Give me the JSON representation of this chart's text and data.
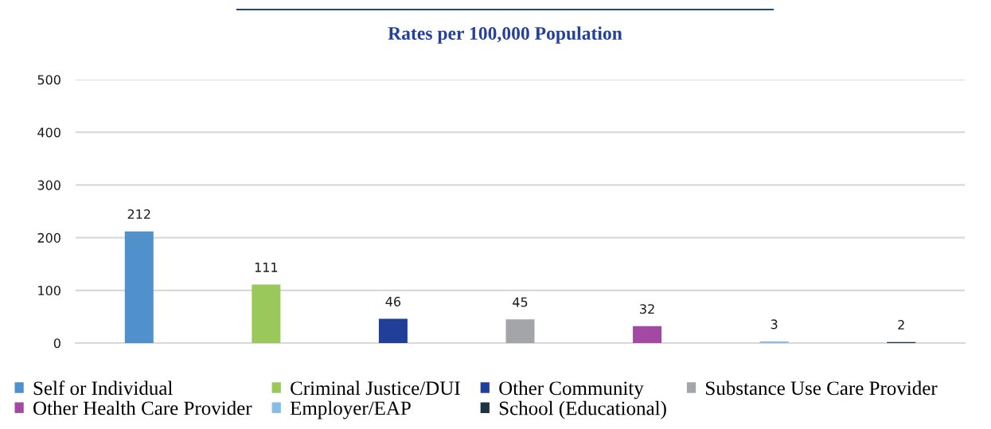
{
  "chart_data": {
    "type": "bar",
    "title": "Rates per 100,000 Population",
    "categories": [
      null
    ],
    "series": [
      {
        "name": "Self or Individual",
        "color": "#4f90cd",
        "values": [
          212
        ]
      },
      {
        "name": "Criminal Justice/DUI",
        "color": "#9bc85a",
        "values": [
          111
        ]
      },
      {
        "name": "Other Community",
        "color": "#213f98",
        "values": [
          46
        ]
      },
      {
        "name": "Substance Use Care Provider",
        "color": "#a3a5a8",
        "values": [
          45
        ]
      },
      {
        "name": "Other Health Care Provider",
        "color": "#a349a4",
        "values": [
          32
        ]
      },
      {
        "name": "Employer/EAP",
        "color": "#85bde6",
        "values": [
          3
        ]
      },
      {
        "name": "School (Educational)",
        "color": "#1d3246",
        "values": [
          2
        ]
      }
    ],
    "ylim": [
      0,
      500
    ],
    "yticks": [
      0,
      100,
      200,
      300,
      400,
      500
    ],
    "grid": "y",
    "legend": "bottom",
    "data_labels": true
  }
}
